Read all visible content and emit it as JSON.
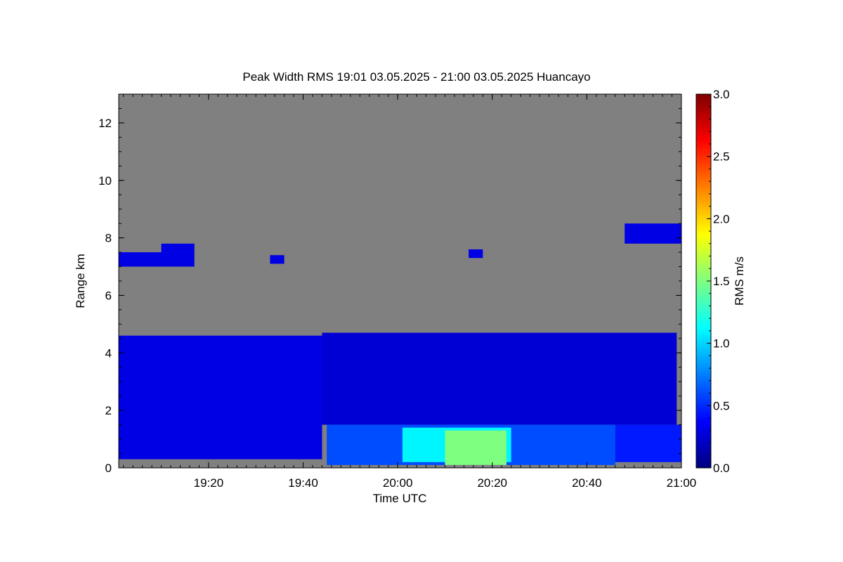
{
  "chart_data": {
    "type": "heatmap",
    "title": "Peak Width RMS   19:01 03.05.2025 - 21:00 03.05.2025 Huancayo",
    "xlabel": "Time UTC",
    "ylabel": "Range km",
    "x_range_minutes_utc": [
      1141,
      1260
    ],
    "y_range_km": [
      0,
      13
    ],
    "x_ticks": [
      {
        "value": 1160,
        "label": "19:20"
      },
      {
        "value": 1180,
        "label": "19:40"
      },
      {
        "value": 1200,
        "label": "20:00"
      },
      {
        "value": 1220,
        "label": "20:20"
      },
      {
        "value": 1240,
        "label": "20:40"
      },
      {
        "value": 1260,
        "label": "21:00"
      }
    ],
    "y_ticks": [
      {
        "value": 0,
        "label": "0"
      },
      {
        "value": 2,
        "label": "2"
      },
      {
        "value": 4,
        "label": "4"
      },
      {
        "value": 6,
        "label": "6"
      },
      {
        "value": 8,
        "label": "8"
      },
      {
        "value": 10,
        "label": "10"
      },
      {
        "value": 12,
        "label": "12"
      }
    ],
    "colorbar": {
      "label": "RMS m/s",
      "range": [
        0.0,
        3.0
      ],
      "ticks": [
        {
          "value": 0.0,
          "label": "0.0"
        },
        {
          "value": 0.5,
          "label": "0.5"
        },
        {
          "value": 1.0,
          "label": "1.0"
        },
        {
          "value": 1.5,
          "label": "1.5"
        },
        {
          "value": 2.0,
          "label": "2.0"
        },
        {
          "value": 2.5,
          "label": "2.5"
        },
        {
          "value": 3.0,
          "label": "3.0"
        }
      ],
      "colormap": [
        "#00007f",
        "#0000ff",
        "#007fff",
        "#00ffff",
        "#7fff7f",
        "#ffff00",
        "#ff7f00",
        "#ff0000",
        "#7f0000"
      ]
    },
    "no_data_color": "#808080",
    "regions": [
      {
        "t": [
          1141,
          1184
        ],
        "r": [
          0.3,
          4.6
        ],
        "rms": 0.3
      },
      {
        "t": [
          1184,
          1259
        ],
        "r": [
          1.5,
          4.7
        ],
        "rms": 0.25
      },
      {
        "t": [
          1185,
          1246
        ],
        "r": [
          0.1,
          1.5
        ],
        "rms": 0.6
      },
      {
        "t": [
          1201,
          1224
        ],
        "r": [
          0.2,
          1.4
        ],
        "rms": 1.1
      },
      {
        "t": [
          1210,
          1223
        ],
        "r": [
          0.1,
          1.3
        ],
        "rms": 1.5
      },
      {
        "t": [
          1141,
          1157
        ],
        "r": [
          7.0,
          7.5
        ],
        "rms": 0.3
      },
      {
        "t": [
          1150,
          1157
        ],
        "r": [
          7.5,
          7.8
        ],
        "rms": 0.3
      },
      {
        "t": [
          1173,
          1176
        ],
        "r": [
          7.1,
          7.4
        ],
        "rms": 0.3
      },
      {
        "t": [
          1215,
          1218
        ],
        "r": [
          7.3,
          7.6
        ],
        "rms": 0.3
      },
      {
        "t": [
          1248,
          1260
        ],
        "r": [
          7.8,
          8.5
        ],
        "rms": 0.3
      },
      {
        "t": [
          1246,
          1260
        ],
        "r": [
          0.2,
          1.5
        ],
        "rms": 0.45
      }
    ]
  }
}
